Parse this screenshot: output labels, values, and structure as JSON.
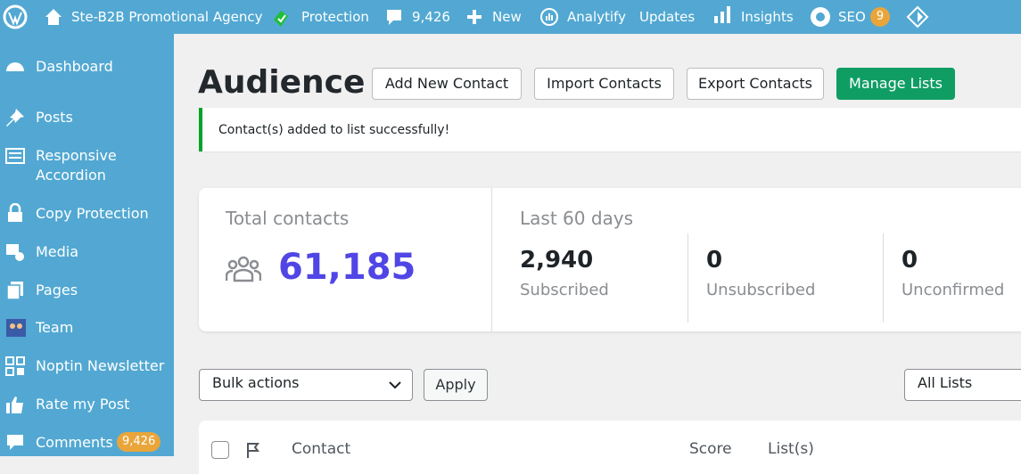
{
  "admin_bar": {
    "site": "Ste-B2B Promotional Agency",
    "protection": "Protection",
    "comments": "9,426",
    "new": "New",
    "analytify": "Analytify",
    "updates": "Updates",
    "insights": "Insights",
    "seo": "SEO",
    "seo_badge": "9"
  },
  "sidebar": {
    "items": [
      "Dashboard",
      "Posts",
      "Responsive Accordion",
      "Copy Protection",
      "Media",
      "Pages",
      "Team",
      "Noptin Newsletter",
      "Rate my Post",
      "Comments"
    ],
    "comments_badge": "9,426"
  },
  "header": {
    "title": "Audience",
    "buttons": [
      "Add New Contact",
      "Import Contacts",
      "Export Contacts",
      "Manage Lists"
    ]
  },
  "notice": "Contact(s) added to list successfully!",
  "stats": {
    "total_label": "Total contacts",
    "total_value": "61,185",
    "period_label": "Last 60 days",
    "items": [
      {
        "value": "2,940",
        "label": "Subscribed"
      },
      {
        "value": "0",
        "label": "Unsubscribed"
      },
      {
        "value": "0",
        "label": "Unconfirmed"
      }
    ]
  },
  "toolbar": {
    "bulk_actions": "Bulk actions",
    "apply": "Apply",
    "list_filter": "All Lists"
  },
  "table": {
    "columns": [
      "Contact",
      "Score",
      "List(s)"
    ]
  }
}
